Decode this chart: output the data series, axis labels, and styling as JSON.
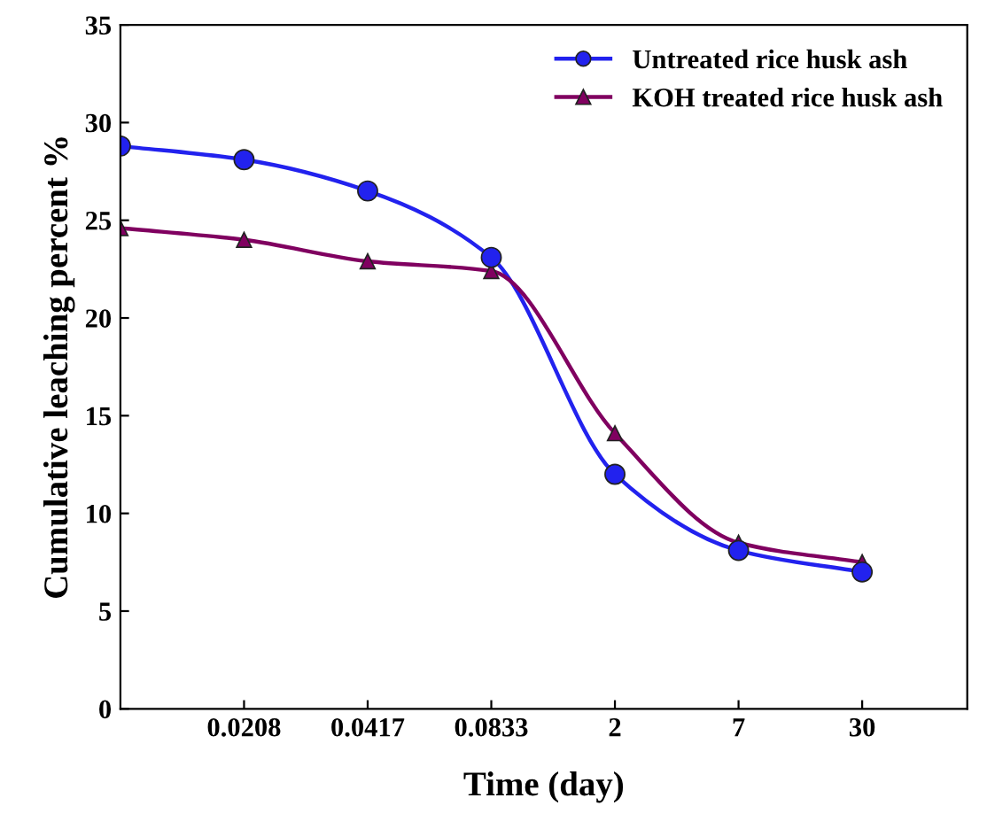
{
  "chart_data": {
    "type": "line",
    "xlabel": "Time (day)",
    "ylabel": "Cumulative leaching percent %",
    "categories": [
      null,
      "0.0208",
      "0.0417",
      "0.0833",
      "2",
      "7",
      "30"
    ],
    "ylim": [
      0,
      35
    ],
    "yticks": [
      0,
      5,
      10,
      15,
      20,
      25,
      30,
      35
    ],
    "series": [
      {
        "name": "Untreated rice husk ash",
        "color": "#2222ee",
        "marker": "circle",
        "values": [
          28.8,
          28.1,
          26.5,
          23.1,
          12.0,
          8.1,
          7.0
        ]
      },
      {
        "name": "KOH treated rice husk ash",
        "color": "#800060",
        "marker": "triangle",
        "values": [
          24.6,
          24.0,
          22.9,
          22.4,
          14.1,
          8.5,
          7.5
        ]
      }
    ],
    "legend": "top right",
    "grid": false,
    "line_style": "solid"
  }
}
